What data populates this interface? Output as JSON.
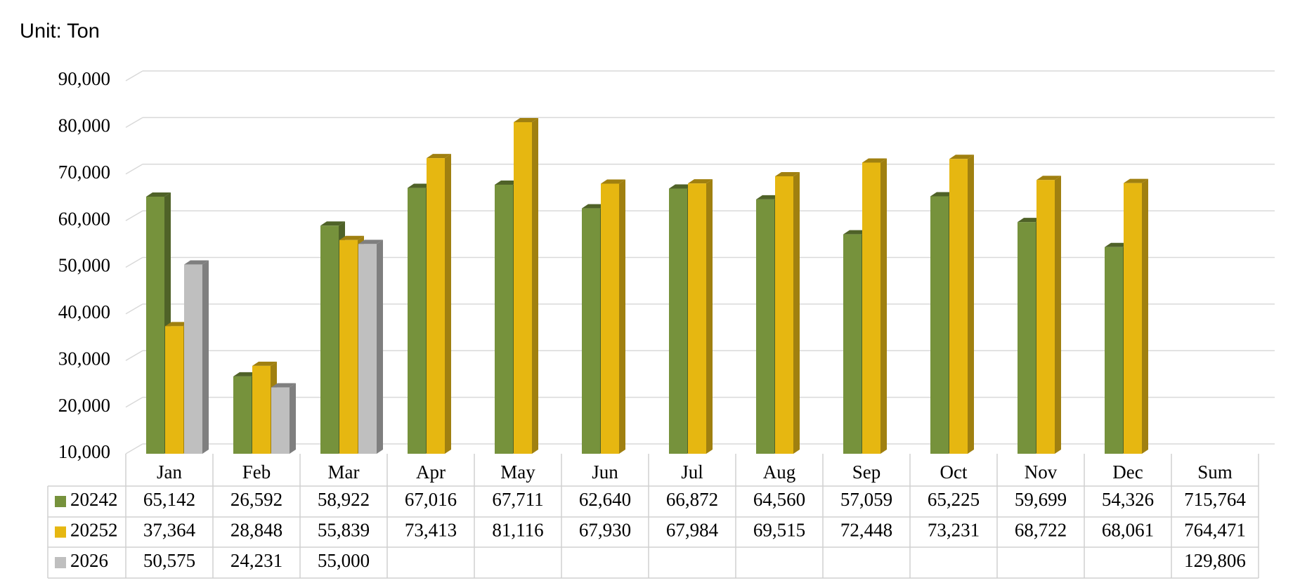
{
  "chart_data": {
    "type": "bar",
    "title": "Unit: Ton",
    "categories": [
      "Jan",
      "Feb",
      "Mar",
      "Apr",
      "May",
      "Jun",
      "Jul",
      "Aug",
      "Sep",
      "Oct",
      "Nov",
      "Dec"
    ],
    "sum_label": "Sum",
    "series": [
      {
        "name": "20242",
        "color": "#76923c",
        "side": "#4f6228",
        "values": [
          65142,
          26592,
          58922,
          67016,
          67711,
          62640,
          66872,
          64560,
          57059,
          65225,
          59699,
          54326
        ],
        "value_labels": [
          "65,142",
          "26,592",
          "58,922",
          "67,016",
          "67,711",
          "62,640",
          "66,872",
          "64,560",
          "57,059",
          "65,225",
          "59,699",
          "54,326"
        ],
        "sum": "715,764"
      },
      {
        "name": "20252",
        "color": "#e6b711",
        "side": "#a08010",
        "values": [
          37364,
          28848,
          55839,
          73413,
          81116,
          67930,
          67984,
          69515,
          72448,
          73231,
          68722,
          68061
        ],
        "value_labels": [
          "37,364",
          "28,848",
          "55,839",
          "73,413",
          "81,116",
          "67,930",
          "67,984",
          "69,515",
          "72,448",
          "73,231",
          "68,722",
          "68,061"
        ],
        "sum": "764,471"
      },
      {
        "name": "2026",
        "color": "#bfbfbf",
        "side": "#7f7f7f",
        "values": [
          50575,
          24231,
          55000,
          null,
          null,
          null,
          null,
          null,
          null,
          null,
          null,
          null
        ],
        "value_labels": [
          "50,575",
          "24,231",
          "55,000",
          null,
          null,
          null,
          null,
          null,
          null,
          null,
          null,
          null
        ],
        "sum": "129,806"
      }
    ],
    "ylim": [
      10000,
      90000
    ],
    "yticks": [
      {
        "value": 10000,
        "label": "10,000"
      },
      {
        "value": 20000,
        "label": "20,000"
      },
      {
        "value": 30000,
        "label": "30,000"
      },
      {
        "value": 40000,
        "label": "40,000"
      },
      {
        "value": 50000,
        "label": "50,000"
      },
      {
        "value": 60000,
        "label": "60,000"
      },
      {
        "value": 70000,
        "label": "70,000"
      },
      {
        "value": 80000,
        "label": "80,000"
      },
      {
        "value": 90000,
        "label": "90,000"
      }
    ],
    "grid": true
  }
}
